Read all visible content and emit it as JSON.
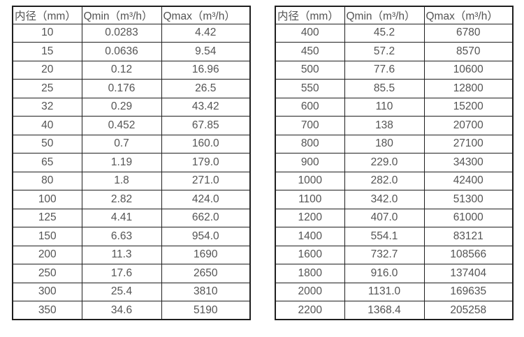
{
  "page": {
    "background_color": "#ffffff",
    "text_color": "#545454",
    "border_color": "#1f1f1f"
  },
  "tables": [
    {
      "headers": [
        "内径（mm）",
        "Qmin（m³/h）",
        "Qmax（m³/h）"
      ],
      "rows": [
        [
          "10",
          "0.0283",
          "4.42"
        ],
        [
          "15",
          "0.0636",
          "9.54"
        ],
        [
          "20",
          "0.12",
          "16.96"
        ],
        [
          "25",
          "0.176",
          "26.5"
        ],
        [
          "32",
          "0.29",
          "43.42"
        ],
        [
          "40",
          "0.452",
          "67.85"
        ],
        [
          "50",
          "0.7",
          "160.0"
        ],
        [
          "65",
          "1.19",
          "179.0"
        ],
        [
          "80",
          "1.8",
          "271.0"
        ],
        [
          "100",
          "2.82",
          "424.0"
        ],
        [
          "125",
          "4.41",
          "662.0"
        ],
        [
          "150",
          "6.63",
          "954.0"
        ],
        [
          "200",
          "11.3",
          "1690"
        ],
        [
          "250",
          "17.6",
          "2650"
        ],
        [
          "300",
          "25.4",
          "3810"
        ],
        [
          "350",
          "34.6",
          "5190"
        ]
      ]
    },
    {
      "headers": [
        "内径（mm）",
        "Qmin（m³/h）",
        "Qmax（m³/h）"
      ],
      "rows": [
        [
          "400",
          "45.2",
          "6780"
        ],
        [
          "450",
          "57.2",
          "8570"
        ],
        [
          "500",
          "77.6",
          "10600"
        ],
        [
          "550",
          "85.5",
          "12800"
        ],
        [
          "600",
          "110",
          "15200"
        ],
        [
          "700",
          "138",
          "20700"
        ],
        [
          "800",
          "180",
          "27100"
        ],
        [
          "900",
          "229.0",
          "34300"
        ],
        [
          "1000",
          "282.0",
          "42400"
        ],
        [
          "1100",
          "342.0",
          "51300"
        ],
        [
          "1200",
          "407.0",
          "61000"
        ],
        [
          "1400",
          "554.1",
          "83121"
        ],
        [
          "1600",
          "732.7",
          "108566"
        ],
        [
          "1800",
          "916.0",
          "137404"
        ],
        [
          "2000",
          "1131.0",
          "169635"
        ],
        [
          "2200",
          "1368.4",
          "205258"
        ]
      ]
    }
  ]
}
